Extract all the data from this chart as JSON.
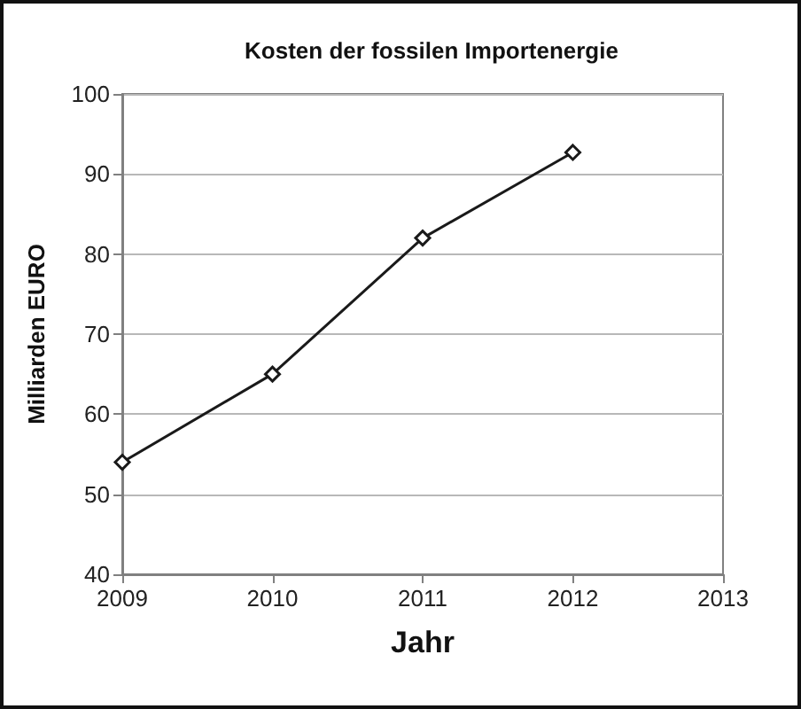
{
  "chart_data": {
    "type": "line",
    "title": "Kosten der fossilen Importenergie",
    "xlabel": "Jahr",
    "ylabel": "Milliarden EURO",
    "x": [
      2009,
      2010,
      2011,
      2012
    ],
    "series": [
      {
        "color": "#1a1a1a",
        "values": [
          54,
          65,
          82,
          92.7
        ]
      }
    ],
    "xlim": [
      2009,
      2013
    ],
    "xticks": [
      2009,
      2010,
      2011,
      2012,
      2013
    ],
    "ylim": [
      40,
      100
    ],
    "yticks": [
      40,
      50,
      60,
      70,
      80,
      90,
      100
    ],
    "grid": "y",
    "marker": "diamond",
    "line_style": "solid"
  }
}
